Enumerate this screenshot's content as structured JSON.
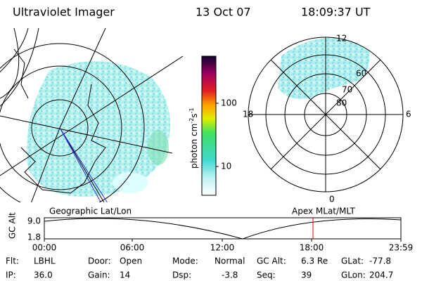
{
  "header": {
    "instrument": "Ultraviolet Imager",
    "date": "13 Oct 07",
    "time": "18:09:37 UT"
  },
  "colorbar": {
    "label": "photon cm",
    "exp1": "-2",
    "unit2": "s",
    "exp2": "-1",
    "ticks": [
      "100",
      "10"
    ]
  },
  "polar": {
    "mlt": [
      "12",
      "18",
      "6",
      "0"
    ],
    "mlat": [
      "60",
      "70",
      "80"
    ]
  },
  "panels": {
    "left": "Geographic Lat/Lon",
    "right": "Apex MLat/MLT"
  },
  "altitude": {
    "label": "GC Alt",
    "yticks": [
      "9.0",
      "1.8"
    ],
    "xticks": [
      "00:00",
      "06:00",
      "12:00",
      "18:00",
      "23:59"
    ]
  },
  "status": [
    [
      {
        "label": "Flt:",
        "value": "LBHL"
      },
      {
        "label": "IP:",
        "value": "36.0"
      }
    ],
    [
      {
        "label": "Door:",
        "value": "Open"
      },
      {
        "label": "Gain:",
        "value": "14"
      }
    ],
    [
      {
        "label": "Mode:",
        "value": "Normal"
      },
      {
        "label": "Dsp:",
        "value": "-3.8"
      }
    ],
    [
      {
        "label": "GC Alt:",
        "value": "6.3 Re"
      },
      {
        "label": "Seq:",
        "value": "39"
      }
    ],
    [
      {
        "label": "GLat:",
        "value": "-77.8"
      },
      {
        "label": "GLon:",
        "value": "204.7"
      }
    ]
  ]
}
